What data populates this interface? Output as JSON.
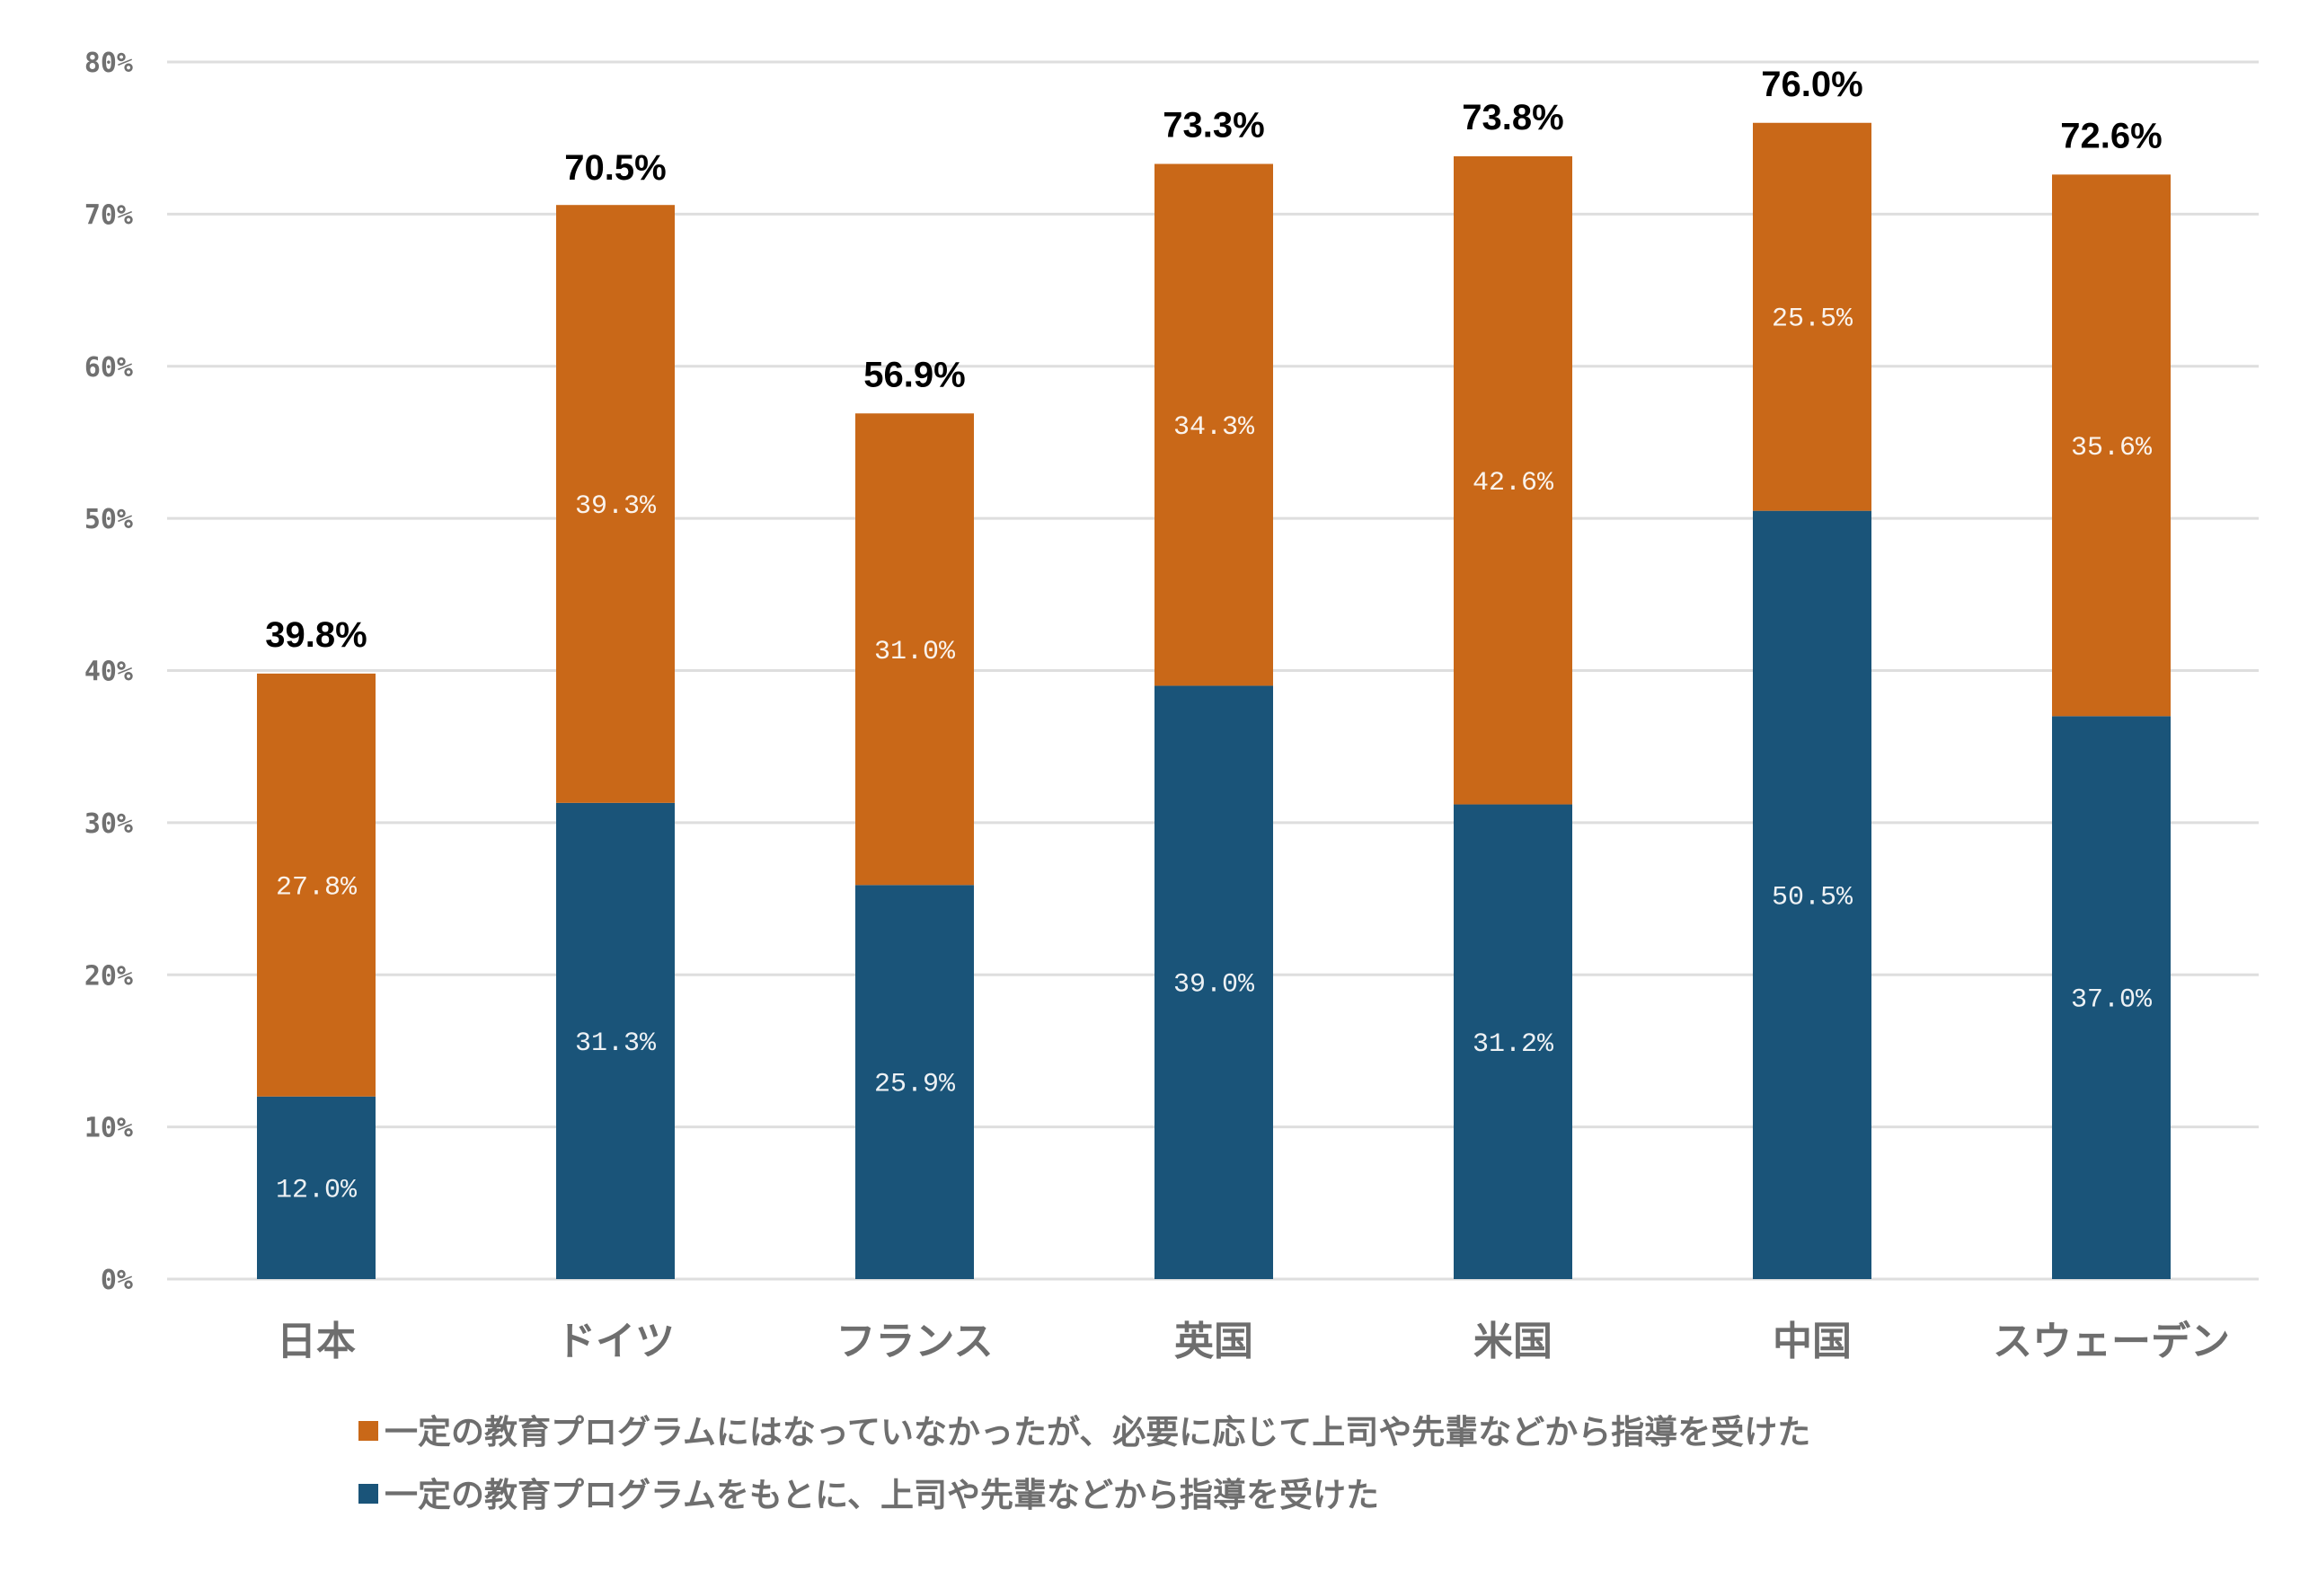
{
  "chart_data": {
    "type": "bar",
    "stacked": true,
    "categories": [
      "日本",
      "ドイツ",
      "フランス",
      "英国",
      "米国",
      "中国",
      "スウェーデン"
    ],
    "series": [
      {
        "name": "一定の教育プログラムをもとに、上司や先輩などから指導を受けた",
        "color": "#1a5479",
        "values": [
          12.0,
          31.3,
          25.9,
          39.0,
          31.2,
          50.5,
          37.0
        ],
        "labels": [
          "12.0%",
          "31.3%",
          "25.9%",
          "39.0%",
          "31.2%",
          "50.5%",
          "37.0%"
        ]
      },
      {
        "name": "一定の教育プログラムにはなっていなかったが、必要に応じて上司や先輩などから指導を受けた",
        "color": "#c96818",
        "values": [
          27.8,
          39.3,
          31.0,
          34.3,
          42.6,
          25.5,
          35.6
        ],
        "labels": [
          "27.8%",
          "39.3%",
          "31.0%",
          "34.3%",
          "42.6%",
          "25.5%",
          "35.6%"
        ]
      }
    ],
    "totals": [
      39.8,
      70.5,
      56.9,
      73.3,
      73.8,
      76.0,
      72.6
    ],
    "total_labels": [
      "39.8%",
      "70.5%",
      "56.9%",
      "73.3%",
      "73.8%",
      "76.0%",
      "72.6%"
    ],
    "ylim": [
      0,
      80
    ],
    "yticks": [
      0,
      10,
      20,
      30,
      40,
      50,
      60,
      70,
      80
    ],
    "ytick_labels": [
      "0%",
      "10%",
      "20%",
      "30%",
      "40%",
      "50%",
      "60%",
      "70%",
      "80%"
    ],
    "grid": true,
    "title": "",
    "xlabel": "",
    "ylabel": "",
    "legend_placement": "bottom",
    "legend": [
      {
        "label": "一定の教育プログラムにはなっていなかったが、必要に応じて上司や先輩などから指導を受けた",
        "color": "#c96818"
      },
      {
        "label": "一定の教育プログラムをもとに、上司や先輩などから指導を受けた",
        "color": "#1a5479"
      }
    ]
  }
}
